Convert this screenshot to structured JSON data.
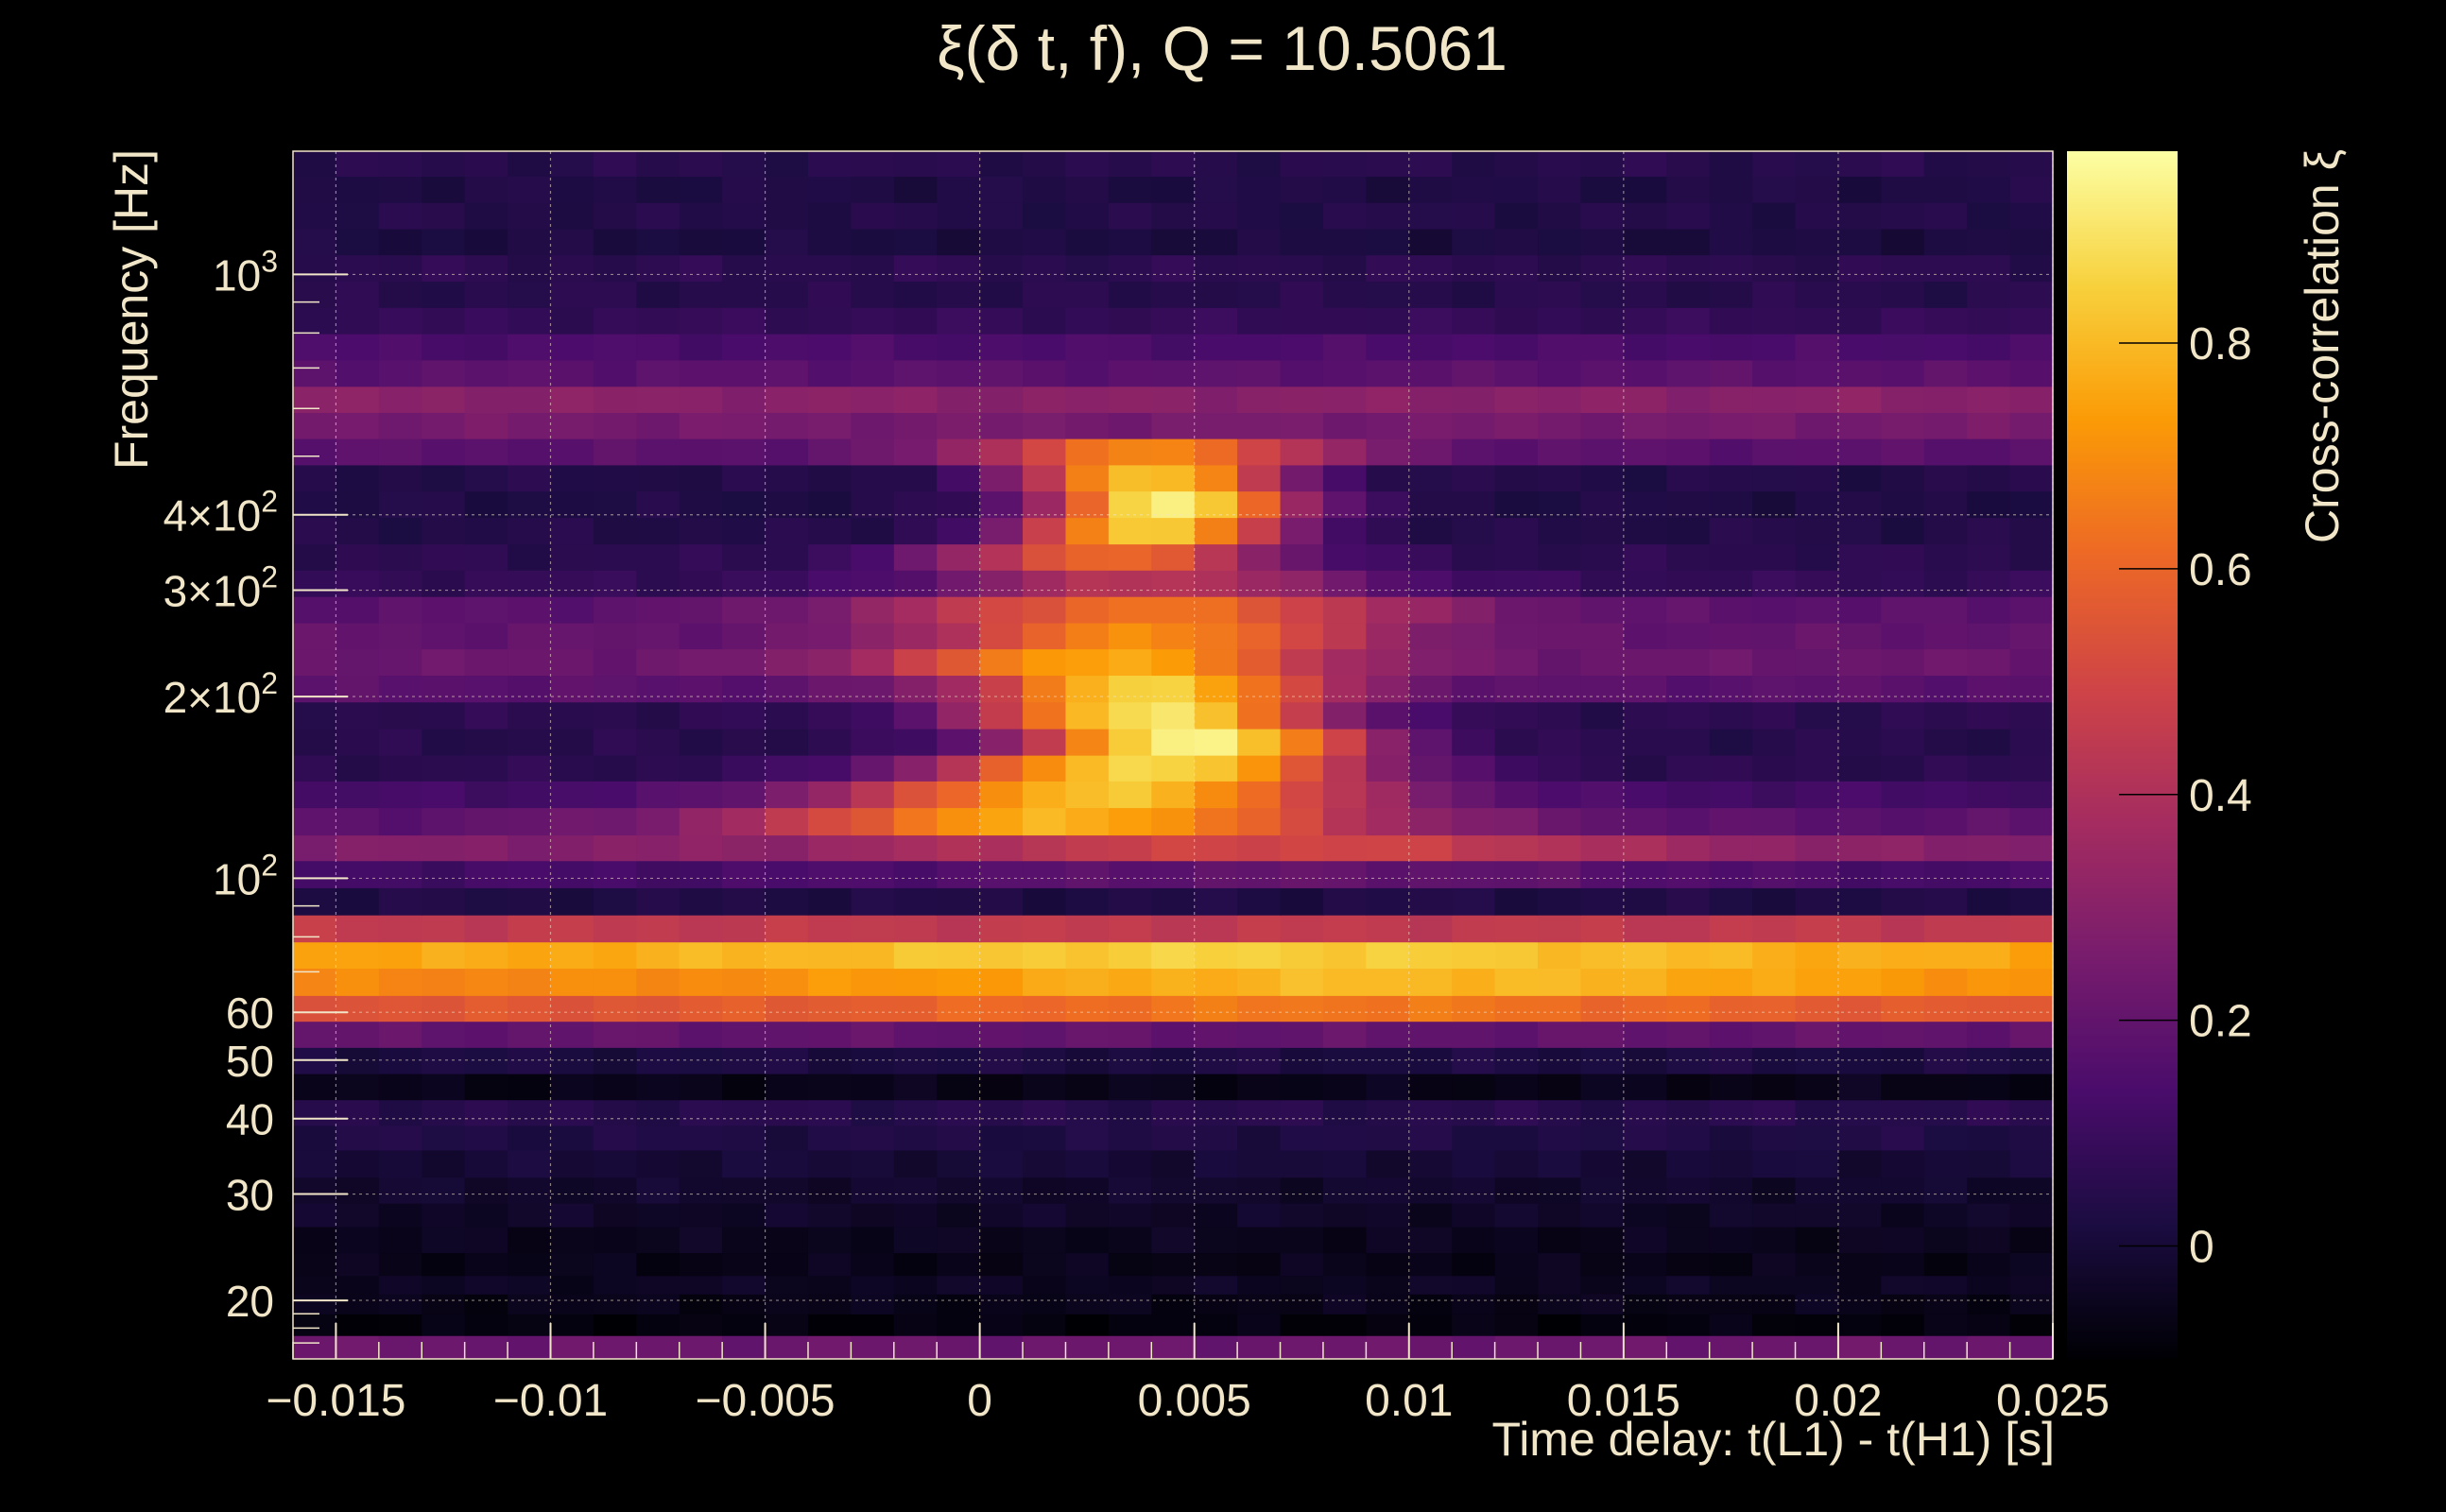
{
  "chart_data": {
    "type": "heatmap",
    "title": "ξ(δ t, f), Q = 10.5061",
    "xlabel": "Time delay: t(L1) - t(H1) [s]",
    "ylabel": "Frequency [Hz]",
    "colorbar_label": "Cross-correlation ξ",
    "xlim": [
      -0.016,
      0.025
    ],
    "ylim_hz": [
      16,
      1600
    ],
    "y_scale": "log",
    "zlim": [
      -0.1,
      0.97
    ],
    "colormap": [
      "#000004",
      "#1b0c41",
      "#4a0c6b",
      "#781c6d",
      "#a52c60",
      "#cf4446",
      "#ed6925",
      "#fb9b06",
      "#f7d13d",
      "#fcffa4"
    ],
    "grid": true,
    "x_ticks": [
      {
        "value": -0.015,
        "label": "−0.015"
      },
      {
        "value": -0.01,
        "label": "−0.01"
      },
      {
        "value": -0.005,
        "label": "−0.005"
      },
      {
        "value": 0,
        "label": "0"
      },
      {
        "value": 0.005,
        "label": "0.005"
      },
      {
        "value": 0.01,
        "label": "0.01"
      },
      {
        "value": 0.015,
        "label": "0.015"
      },
      {
        "value": 0.02,
        "label": "0.02"
      },
      {
        "value": 0.025,
        "label": "0.025"
      }
    ],
    "y_ticks": [
      {
        "value": 20,
        "label": "20"
      },
      {
        "value": 30,
        "label": "30"
      },
      {
        "value": 40,
        "label": "40"
      },
      {
        "value": 50,
        "label": "50"
      },
      {
        "value": 60,
        "label": "60"
      },
      {
        "value": 100,
        "label": "10",
        "sup": "2"
      },
      {
        "value": 200,
        "label": "2×10",
        "sup": "2"
      },
      {
        "value": 300,
        "label": "3×10",
        "sup": "2"
      },
      {
        "value": 400,
        "label": "4×10",
        "sup": "2"
      },
      {
        "value": 1000,
        "label": "10",
        "sup": "3"
      }
    ],
    "colorbar_ticks": [
      {
        "value": 0,
        "label": "0"
      },
      {
        "value": 0.2,
        "label": "0.2"
      },
      {
        "value": 0.4,
        "label": "0.4"
      },
      {
        "value": 0.6,
        "label": "0.6"
      },
      {
        "value": 0.8,
        "label": "0.8"
      }
    ],
    "x_bins": 41,
    "y_bin_edges_hz": [
      16,
      17.5,
      19,
      20.5,
      22,
      24,
      26.5,
      29,
      32,
      35.5,
      39,
      43,
      47.5,
      52.5,
      58,
      64,
      71,
      78.5,
      87,
      96.5,
      107,
      118,
      131,
      145,
      160,
      177,
      196,
      217,
      240,
      265,
      293,
      324,
      358,
      396,
      438,
      484,
      535,
      591,
      653,
      722,
      798,
      882,
      975,
      1078,
      1191,
      1316,
      1455,
      1600
    ],
    "rows": [
      {
        "base": 0.22,
        "peaks": []
      },
      {
        "base": -0.08,
        "peaks": []
      },
      {
        "base": -0.06,
        "peaks": []
      },
      {
        "base": -0.04,
        "peaks": []
      },
      {
        "base": -0.06,
        "peaks": []
      },
      {
        "base": -0.05,
        "peaks": []
      },
      {
        "base": -0.03,
        "peaks": []
      },
      {
        "base": -0.02,
        "peaks": []
      },
      {
        "base": 0.0,
        "peaks": []
      },
      {
        "base": 0.03,
        "peaks": []
      },
      {
        "base": 0.05,
        "peaks": []
      },
      {
        "base": -0.06,
        "peaks": []
      },
      {
        "base": 0.02,
        "peaks": []
      },
      {
        "base": 0.2,
        "peaks": []
      },
      {
        "base": 0.55,
        "peaks": [
          {
            "x": 0.008,
            "amp": 0.1,
            "w": 0.01
          }
        ]
      },
      {
        "base": 0.68,
        "peaks": [
          {
            "x": 0.01,
            "amp": 0.12,
            "w": 0.012
          }
        ]
      },
      {
        "base": 0.75,
        "peaks": [
          {
            "x": 0.006,
            "amp": 0.1,
            "w": 0.012
          }
        ]
      },
      {
        "base": 0.45,
        "peaks": []
      },
      {
        "base": 0.03,
        "peaks": []
      },
      {
        "base": 0.12,
        "peaks": [
          {
            "x": 0.008,
            "amp": 0.08,
            "w": 0.01
          }
        ]
      },
      {
        "base": 0.28,
        "peaks": [
          {
            "x": 0.007,
            "amp": 0.22,
            "w": 0.009
          }
        ]
      },
      {
        "base": 0.18,
        "peaks": [
          {
            "x": 0.002,
            "amp": 0.6,
            "w": 0.007
          }
        ]
      },
      {
        "base": 0.12,
        "peaks": [
          {
            "x": 0.003,
            "amp": 0.7,
            "w": 0.006
          }
        ]
      },
      {
        "base": 0.06,
        "peaks": [
          {
            "x": 0.004,
            "amp": 0.82,
            "w": 0.005
          }
        ]
      },
      {
        "base": 0.05,
        "peaks": [
          {
            "x": 0.005,
            "amp": 0.9,
            "w": 0.004
          }
        ]
      },
      {
        "base": 0.06,
        "peaks": [
          {
            "x": 0.004,
            "amp": 0.85,
            "w": 0.004
          }
        ]
      },
      {
        "base": 0.18,
        "peaks": [
          {
            "x": 0.004,
            "amp": 0.68,
            "w": 0.004
          }
        ]
      },
      {
        "base": 0.22,
        "peaks": [
          {
            "x": 0.003,
            "amp": 0.55,
            "w": 0.005
          }
        ]
      },
      {
        "base": 0.2,
        "peaks": [
          {
            "x": 0.004,
            "amp": 0.5,
            "w": 0.005
          }
        ]
      },
      {
        "base": 0.18,
        "peaks": [
          {
            "x": 0.004,
            "amp": 0.45,
            "w": 0.006
          }
        ]
      },
      {
        "base": 0.08,
        "peaks": [
          {
            "x": 0.004,
            "amp": 0.35,
            "w": 0.005
          }
        ]
      },
      {
        "base": 0.06,
        "peaks": [
          {
            "x": 0.003,
            "amp": 0.55,
            "w": 0.004
          }
        ]
      },
      {
        "base": 0.04,
        "peaks": [
          {
            "x": 0.004,
            "amp": 0.82,
            "w": 0.003
          }
        ]
      },
      {
        "base": 0.03,
        "peaks": [
          {
            "x": 0.0045,
            "amp": 0.9,
            "w": 0.003
          }
        ]
      },
      {
        "base": 0.04,
        "peaks": [
          {
            "x": 0.004,
            "amp": 0.8,
            "w": 0.003
          }
        ]
      },
      {
        "base": 0.18,
        "peaks": [
          {
            "x": 0.004,
            "amp": 0.5,
            "w": 0.004
          }
        ]
      },
      {
        "base": 0.25,
        "peaks": []
      },
      {
        "base": 0.3,
        "peaks": []
      },
      {
        "base": 0.18,
        "peaks": []
      },
      {
        "base": 0.14,
        "peaks": []
      },
      {
        "base": 0.08,
        "peaks": []
      },
      {
        "base": 0.05,
        "peaks": []
      },
      {
        "base": 0.06,
        "peaks": []
      },
      {
        "base": 0.02,
        "peaks": []
      },
      {
        "base": 0.04,
        "peaks": []
      },
      {
        "base": 0.03,
        "peaks": []
      },
      {
        "base": 0.05,
        "peaks": []
      }
    ]
  }
}
